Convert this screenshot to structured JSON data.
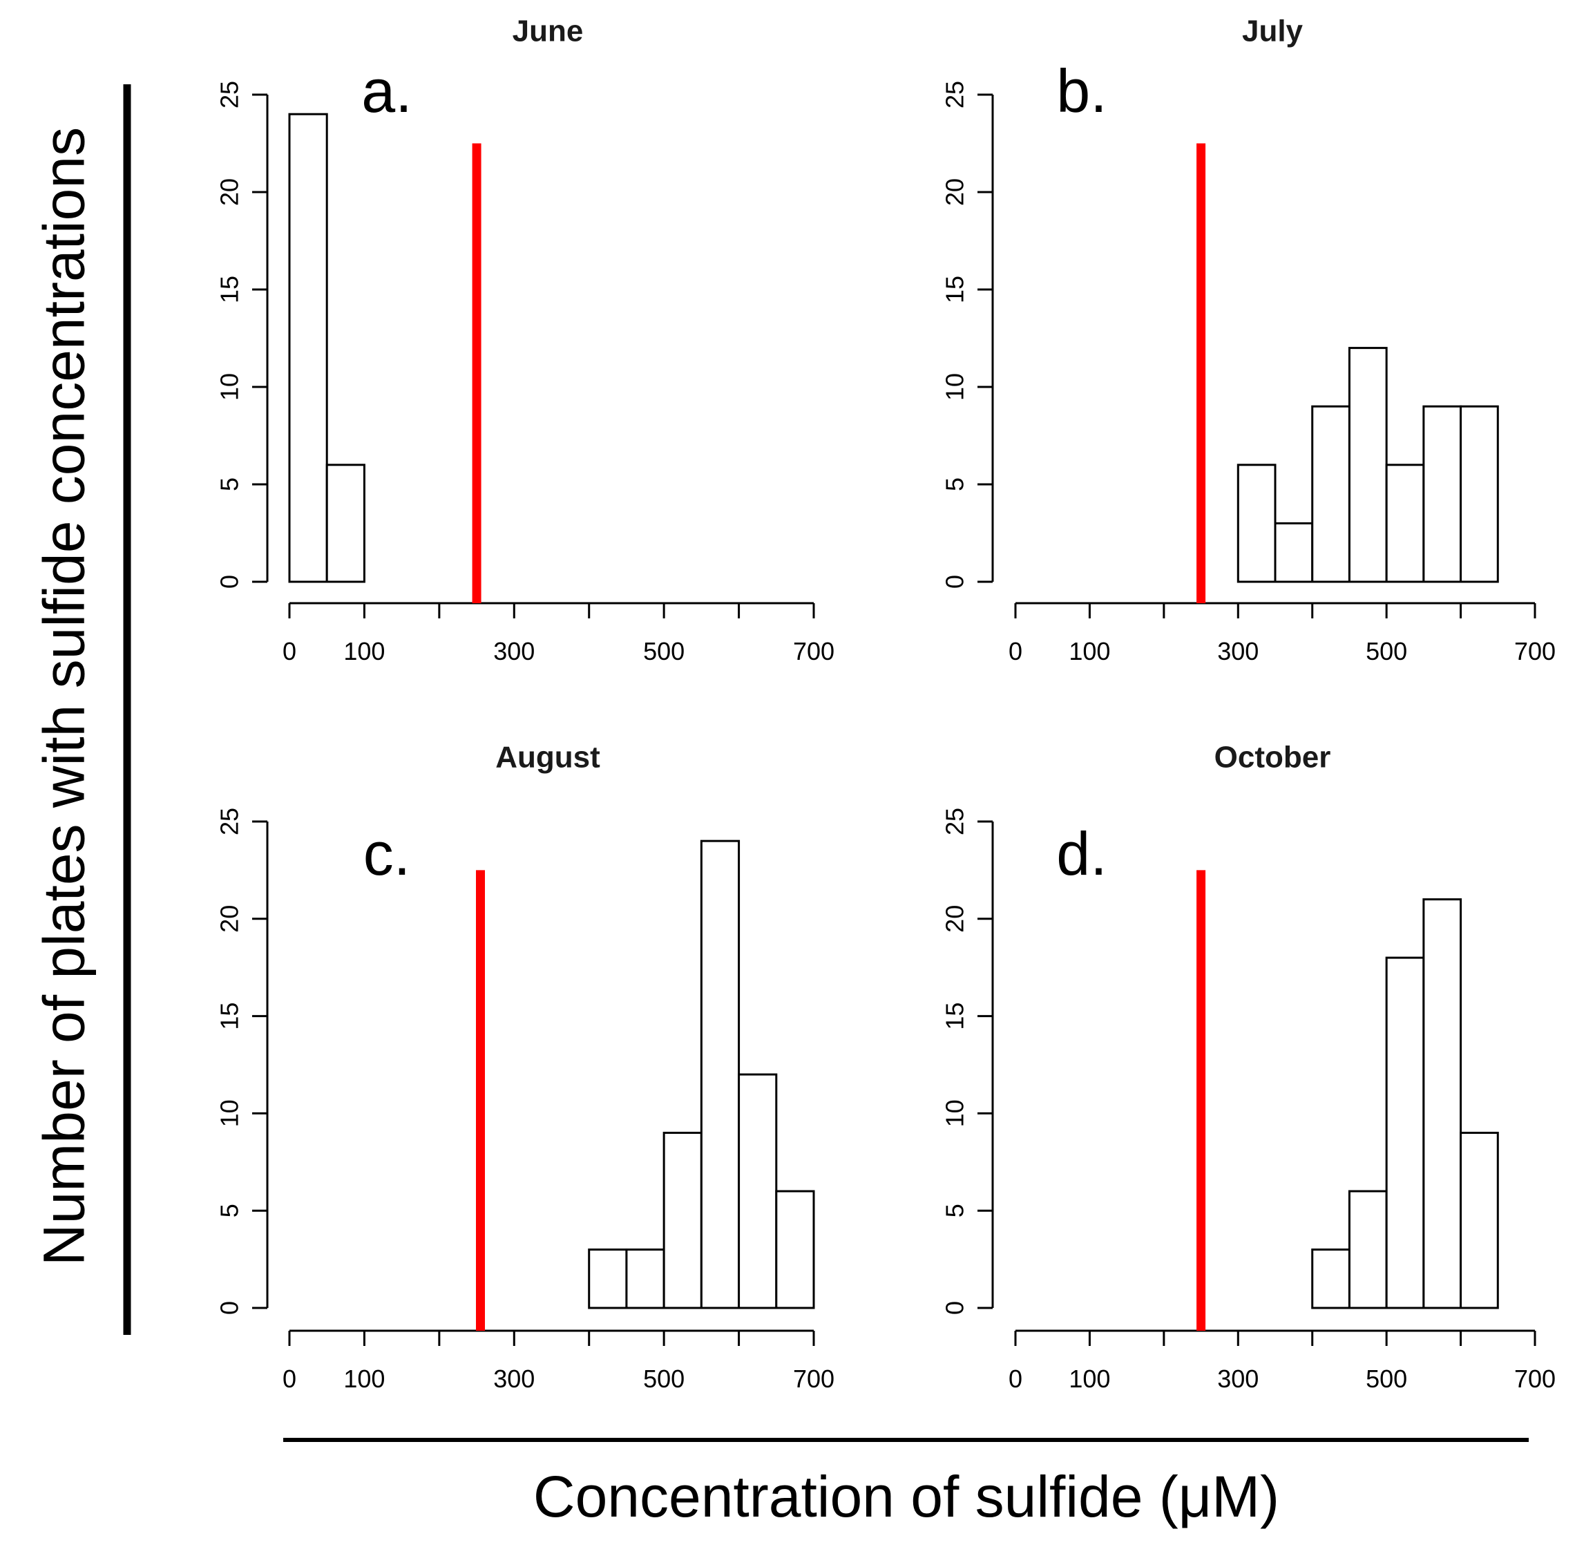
{
  "figure": {
    "ylabel": "Number of plates with sulfide concentrations",
    "xlabel": "Concentration of sulfide (μM)"
  },
  "colors": {
    "bar_fill": "#ffffff",
    "bar_stroke": "#000000",
    "threshold": "#ff0000",
    "axis": "#000000"
  },
  "chart_data": [
    {
      "type": "bar",
      "panel": "a.",
      "title": "June",
      "bin_width": 50,
      "bins": [
        [
          0,
          50
        ],
        [
          50,
          100
        ]
      ],
      "values": [
        24,
        6
      ],
      "threshold": 250,
      "xlim": [
        0,
        700
      ],
      "ylim": [
        0,
        25
      ],
      "xticks": [
        0,
        100,
        200,
        300,
        400,
        500,
        600,
        700
      ],
      "xtick_labels": [
        "0",
        "100",
        "",
        "300",
        "",
        "500",
        "",
        "700"
      ],
      "yticks": [
        0,
        5,
        10,
        15,
        20,
        25
      ],
      "ytick_labels": [
        "0",
        "5",
        "10",
        "15",
        "20",
        "25"
      ]
    },
    {
      "type": "bar",
      "panel": "b.",
      "title": "July",
      "bin_width": 50,
      "bins": [
        [
          300,
          350
        ],
        [
          350,
          400
        ],
        [
          400,
          450
        ],
        [
          450,
          500
        ],
        [
          500,
          550
        ],
        [
          550,
          600
        ],
        [
          600,
          650
        ]
      ],
      "values": [
        6,
        3,
        9,
        12,
        6,
        9,
        9
      ],
      "threshold": 250,
      "xlim": [
        0,
        700
      ],
      "ylim": [
        0,
        25
      ],
      "xticks": [
        0,
        100,
        200,
        300,
        400,
        500,
        600,
        700
      ],
      "xtick_labels": [
        "0",
        "100",
        "",
        "300",
        "",
        "500",
        "",
        "700"
      ],
      "yticks": [
        0,
        5,
        10,
        15,
        20,
        25
      ],
      "ytick_labels": [
        "0",
        "5",
        "10",
        "15",
        "20",
        "25"
      ]
    },
    {
      "type": "bar",
      "panel": "c.",
      "title": "August",
      "bin_width": 50,
      "bins": [
        [
          400,
          450
        ],
        [
          450,
          500
        ],
        [
          500,
          550
        ],
        [
          550,
          600
        ],
        [
          600,
          650
        ],
        [
          650,
          700
        ]
      ],
      "values": [
        3,
        3,
        9,
        24,
        12,
        6
      ],
      "threshold": 255,
      "xlim": [
        0,
        700
      ],
      "ylim": [
        0,
        25
      ],
      "xticks": [
        0,
        100,
        200,
        300,
        400,
        500,
        600,
        700
      ],
      "xtick_labels": [
        "0",
        "100",
        "",
        "300",
        "",
        "500",
        "",
        "700"
      ],
      "yticks": [
        0,
        5,
        10,
        15,
        20,
        25
      ],
      "ytick_labels": [
        "0",
        "5",
        "10",
        "15",
        "20",
        "25"
      ]
    },
    {
      "type": "bar",
      "panel": "d.",
      "title": "October",
      "bin_width": 50,
      "bins": [
        [
          400,
          450
        ],
        [
          450,
          500
        ],
        [
          500,
          550
        ],
        [
          550,
          600
        ],
        [
          600,
          650
        ]
      ],
      "values": [
        3,
        6,
        18,
        21,
        9
      ],
      "threshold": 250,
      "xlim": [
        0,
        700
      ],
      "ylim": [
        0,
        25
      ],
      "xticks": [
        0,
        100,
        200,
        300,
        400,
        500,
        600,
        700
      ],
      "xtick_labels": [
        "0",
        "100",
        "",
        "300",
        "",
        "500",
        "",
        "700"
      ],
      "yticks": [
        0,
        5,
        10,
        15,
        20,
        25
      ],
      "ytick_labels": [
        "0",
        "5",
        "10",
        "15",
        "20",
        "25"
      ]
    }
  ]
}
